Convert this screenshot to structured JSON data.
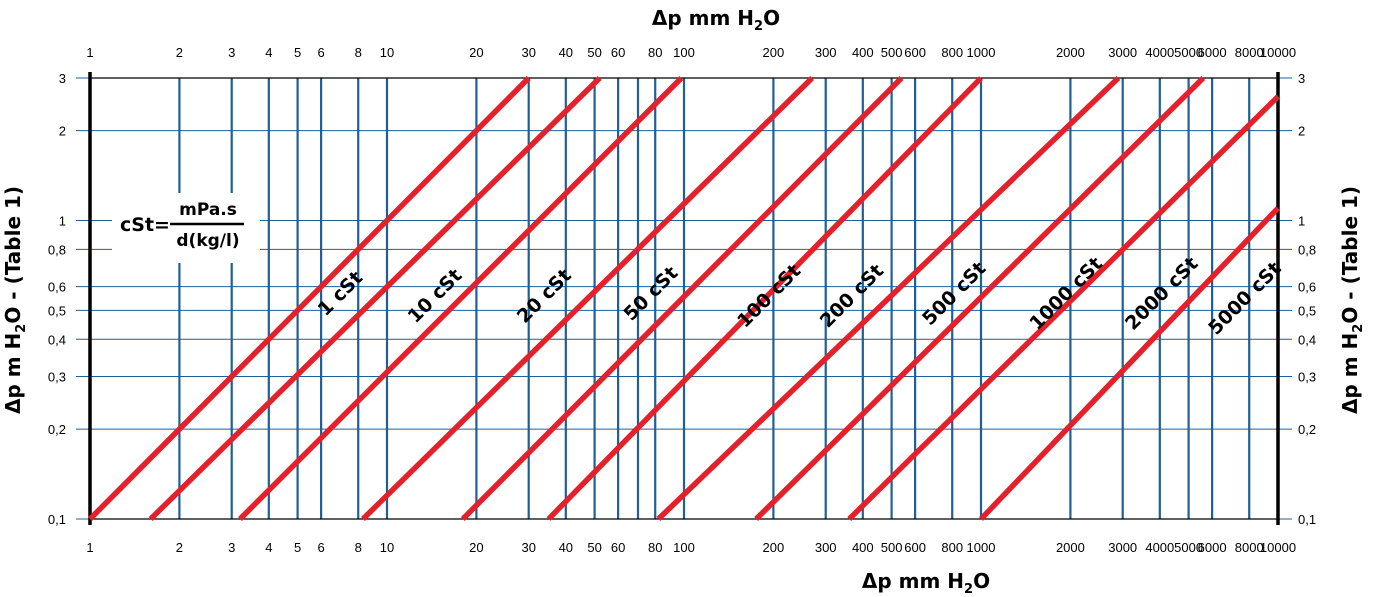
{
  "chart_data": {
    "type": "line",
    "scale": "log-log",
    "top_title": {
      "prefix": "Δp mm H",
      "sub": "2",
      "suffix": "O"
    },
    "bottom_title": {
      "prefix": "Δp mm H",
      "sub": "2",
      "suffix": "O"
    },
    "left_title": {
      "prefix": "Δp m H",
      "sub": "2",
      "suffix": "O - (Table 1)"
    },
    "right_title": {
      "prefix": "Δp m H",
      "sub": "2",
      "suffix": "O - (Table 1)"
    },
    "xlim": [
      1,
      10000
    ],
    "ylim": [
      0.1,
      3
    ],
    "x_ticks": [
      {
        "v": 1,
        "l": "1"
      },
      {
        "v": 2,
        "l": "2"
      },
      {
        "v": 3,
        "l": "3"
      },
      {
        "v": 4,
        "l": "4"
      },
      {
        "v": 5,
        "l": "5"
      },
      {
        "v": 6,
        "l": "6"
      },
      {
        "v": 8,
        "l": "8"
      },
      {
        "v": 10,
        "l": "10"
      },
      {
        "v": 20,
        "l": "20"
      },
      {
        "v": 30,
        "l": "30"
      },
      {
        "v": 40,
        "l": "40"
      },
      {
        "v": 50,
        "l": "50"
      },
      {
        "v": 60,
        "l": "60"
      },
      {
        "v": 80,
        "l": "80"
      },
      {
        "v": 100,
        "l": "100"
      },
      {
        "v": 200,
        "l": "200"
      },
      {
        "v": 300,
        "l": "300"
      },
      {
        "v": 400,
        "l": "400"
      },
      {
        "v": 500,
        "l": "500"
      },
      {
        "v": 600,
        "l": "600"
      },
      {
        "v": 800,
        "l": "800"
      },
      {
        "v": 1000,
        "l": "1000"
      },
      {
        "v": 2000,
        "l": "2000"
      },
      {
        "v": 3000,
        "l": "3000"
      },
      {
        "v": 4000,
        "l": "4000"
      },
      {
        "v": 5000,
        "l": "5000"
      },
      {
        "v": 6000,
        "l": "6000"
      },
      {
        "v": 8000,
        "l": "8000"
      },
      {
        "v": 10000,
        "l": "10000"
      }
    ],
    "x_extra_lines": [
      70
    ],
    "y_ticks": [
      {
        "v": 0.1,
        "l": "0,1"
      },
      {
        "v": 0.2,
        "l": "0,2"
      },
      {
        "v": 0.3,
        "l": "0,3"
      },
      {
        "v": 0.4,
        "l": "0,4"
      },
      {
        "v": 0.5,
        "l": "0,5"
      },
      {
        "v": 0.6,
        "l": "0,6"
      },
      {
        "v": 0.8,
        "l": "0,8"
      },
      {
        "v": 1,
        "l": "1"
      },
      {
        "v": 2,
        "l": "2"
      },
      {
        "v": 3,
        "l": "3"
      }
    ],
    "series": [
      {
        "name": "1 cSt",
        "x": [
          1,
          30
        ],
        "y": [
          0.1,
          3
        ]
      },
      {
        "name": "10 cSt",
        "x": [
          1.6,
          52
        ],
        "y": [
          0.1,
          3
        ]
      },
      {
        "name": "20 cSt",
        "x": [
          3.2,
          98
        ],
        "y": [
          0.1,
          3
        ]
      },
      {
        "name": "50 cSt",
        "x": [
          8.3,
          270
        ],
        "y": [
          0.1,
          3
        ]
      },
      {
        "name": "100 cSt",
        "x": [
          18,
          540
        ],
        "y": [
          0.1,
          3
        ]
      },
      {
        "name": "200 cSt",
        "x": [
          35,
          1000
        ],
        "y": [
          0.1,
          3
        ]
      },
      {
        "name": "500 cSt",
        "x": [
          82,
          2900
        ],
        "y": [
          0.1,
          3
        ]
      },
      {
        "name": "1000 cSt",
        "x": [
          175,
          5600
        ],
        "y": [
          0.1,
          3
        ]
      },
      {
        "name": "2000 cSt",
        "x": [
          360,
          10000
        ],
        "y": [
          0.1,
          2.6
        ]
      },
      {
        "name": "5000 cSt",
        "x": [
          1000,
          10000
        ],
        "y": [
          0.1,
          1.1
        ]
      }
    ],
    "labels": [
      {
        "text": "1 cSt",
        "x": 7.2,
        "y": 0.55
      },
      {
        "text": "10 cSt",
        "x": 15,
        "y": 0.54
      },
      {
        "text": "20 cSt",
        "x": 35,
        "y": 0.54
      },
      {
        "text": "50 cSt",
        "x": 80,
        "y": 0.55
      },
      {
        "text": "100 cSt",
        "x": 200,
        "y": 0.54
      },
      {
        "text": "200 cSt",
        "x": 380,
        "y": 0.54
      },
      {
        "text": "500 cSt",
        "x": 840,
        "y": 0.55
      },
      {
        "text": "1000 cSt",
        "x": 2000,
        "y": 0.55
      },
      {
        "text": "2000 cSt",
        "x": 4200,
        "y": 0.55
      },
      {
        "text": "5000 cSt",
        "x": 8000,
        "y": 0.53
      }
    ],
    "formula": {
      "lhs": "cSt=",
      "numerator": "mPa.s",
      "denominator": "d(kg/l)"
    },
    "colors": {
      "grid_vertical": "#1f5f96",
      "grid_horizontal": "#1f5f96",
      "series": "#e4202a",
      "frame": "#000000"
    }
  }
}
